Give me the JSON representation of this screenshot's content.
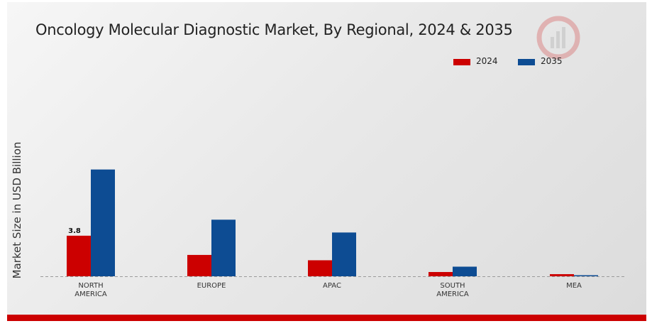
{
  "chart_data": {
    "type": "bar",
    "title": "Oncology Molecular Diagnostic Market, By Regional, 2024 & 2035",
    "xlabel": "",
    "ylabel": "Market Size in USD Billion",
    "categories": [
      "NORTH AMERICA",
      "EUROPE",
      "APAC",
      "SOUTH AMERICA",
      "MEA"
    ],
    "category_lines": [
      [
        "NORTH",
        "AMERICA"
      ],
      [
        "EUROPE"
      ],
      [
        "APAC"
      ],
      [
        "SOUTH",
        "AMERICA"
      ],
      [
        "MEA"
      ]
    ],
    "series": [
      {
        "name": "2024",
        "color": "#cc0000",
        "values": [
          3.8,
          2.0,
          1.5,
          0.4,
          0.2
        ]
      },
      {
        "name": "2035",
        "color": "#0d4c93",
        "values": [
          10.0,
          5.3,
          4.1,
          0.9,
          0.1
        ]
      }
    ],
    "data_labels": [
      {
        "series": 0,
        "index": 0,
        "text": "3.8"
      }
    ],
    "ylim": [
      0,
      14.5
    ],
    "grid": false,
    "legend_position": "top-right",
    "baseline_style": "dashed"
  }
}
